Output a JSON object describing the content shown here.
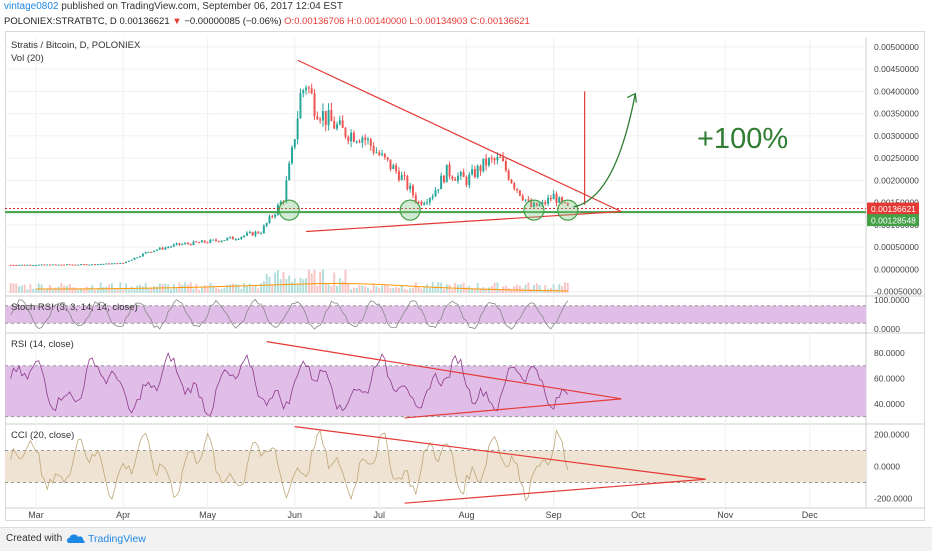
{
  "header": {
    "user": "vintage0802",
    "published": "published on TradingView.com, September 06, 2017 12:04 EST",
    "symbol": "POLONIEX:STRATBTC, D",
    "price": "0.00136621",
    "change": "−0.00000085 (−0.06%)",
    "ohlc": "O:0.00136706 H:0.00140000 L:0.00134903 C:0.00136621"
  },
  "footer": {
    "created": "Created with",
    "brand": "TradingView"
  },
  "colors": {
    "up": "#26a69a",
    "down": "#ef5350",
    "trend": "#e53935",
    "support": "#43a047",
    "price_label": "#e53935",
    "support_label": "#43a047",
    "rsi_fill": "#e1bee7",
    "cci_fill": "#efe3d3",
    "annotation": "#2e7d32"
  },
  "chart_data": [
    {
      "type": "candlestick",
      "title": "Stratis / Bitcoin, D, POLONIEX",
      "subtitle": "Vol (20)",
      "x_ticks": [
        "Mar",
        "Apr",
        "May",
        "Jun",
        "Jul",
        "Aug",
        "Sep",
        "Oct",
        "Nov",
        "Dec"
      ],
      "y_ticks": [
        "0.00500000",
        "0.00450000",
        "0.00400000",
        "0.00350000",
        "0.00300000",
        "0.00250000",
        "0.00200000",
        "0.00150000",
        "0.00100000",
        "0.00050000",
        "0.00000000",
        "-0.00050000"
      ],
      "ylim": [
        -0.0006,
        0.0052
      ],
      "price_labels": {
        "last": "0.00136621",
        "support": "0.00128548"
      },
      "annotation": "+100%",
      "close_series": [
        {
          "date": "2017-02-25",
          "close": 0.0001
        },
        {
          "date": "2017-03-20",
          "close": 0.00011
        },
        {
          "date": "2017-04-01",
          "close": 0.00014
        },
        {
          "date": "2017-04-10",
          "close": 0.0004
        },
        {
          "date": "2017-04-20",
          "close": 0.00055
        },
        {
          "date": "2017-05-01",
          "close": 0.00062
        },
        {
          "date": "2017-05-10",
          "close": 0.0007
        },
        {
          "date": "2017-05-20",
          "close": 0.00085
        },
        {
          "date": "2017-05-25",
          "close": 0.0013
        },
        {
          "date": "2017-05-28",
          "close": 0.0016
        },
        {
          "date": "2017-05-31",
          "close": 0.0026
        },
        {
          "date": "2017-06-03",
          "close": 0.0039
        },
        {
          "date": "2017-06-05",
          "close": 0.0042
        },
        {
          "date": "2017-06-08",
          "close": 0.0037
        },
        {
          "date": "2017-06-12",
          "close": 0.0034
        },
        {
          "date": "2017-06-18",
          "close": 0.0031
        },
        {
          "date": "2017-06-25",
          "close": 0.003
        },
        {
          "date": "2017-07-02",
          "close": 0.0025
        },
        {
          "date": "2017-07-08",
          "close": 0.00215
        },
        {
          "date": "2017-07-15",
          "close": 0.0015
        },
        {
          "date": "2017-07-20",
          "close": 0.0017
        },
        {
          "date": "2017-07-25",
          "close": 0.0022
        },
        {
          "date": "2017-08-01",
          "close": 0.002
        },
        {
          "date": "2017-08-08",
          "close": 0.0024
        },
        {
          "date": "2017-08-13",
          "close": 0.00245
        },
        {
          "date": "2017-08-18",
          "close": 0.0019
        },
        {
          "date": "2017-08-24",
          "close": 0.0014
        },
        {
          "date": "2017-08-28",
          "close": 0.00145
        },
        {
          "date": "2017-09-01",
          "close": 0.00165
        },
        {
          "date": "2017-09-04",
          "close": 0.00145
        },
        {
          "date": "2017-09-06",
          "close": 0.00137
        }
      ]
    },
    {
      "type": "line",
      "title": "Stoch RSI (3, 3, 14, 14, close)",
      "y_ticks": [
        "100.0000",
        "0.0000"
      ],
      "ylim": [
        -10,
        110
      ]
    },
    {
      "type": "line",
      "title": "RSI (14, close)",
      "y_ticks": [
        "80.0000",
        "60.0000",
        "40.0000"
      ],
      "ylim": [
        25,
        95
      ],
      "band": [
        30,
        70
      ]
    },
    {
      "type": "line",
      "title": "CCI (20, close)",
      "y_ticks": [
        "200.0000",
        "0.0000",
        "-200.0000"
      ],
      "ylim": [
        -260,
        260
      ],
      "band": [
        -100,
        100
      ]
    }
  ]
}
